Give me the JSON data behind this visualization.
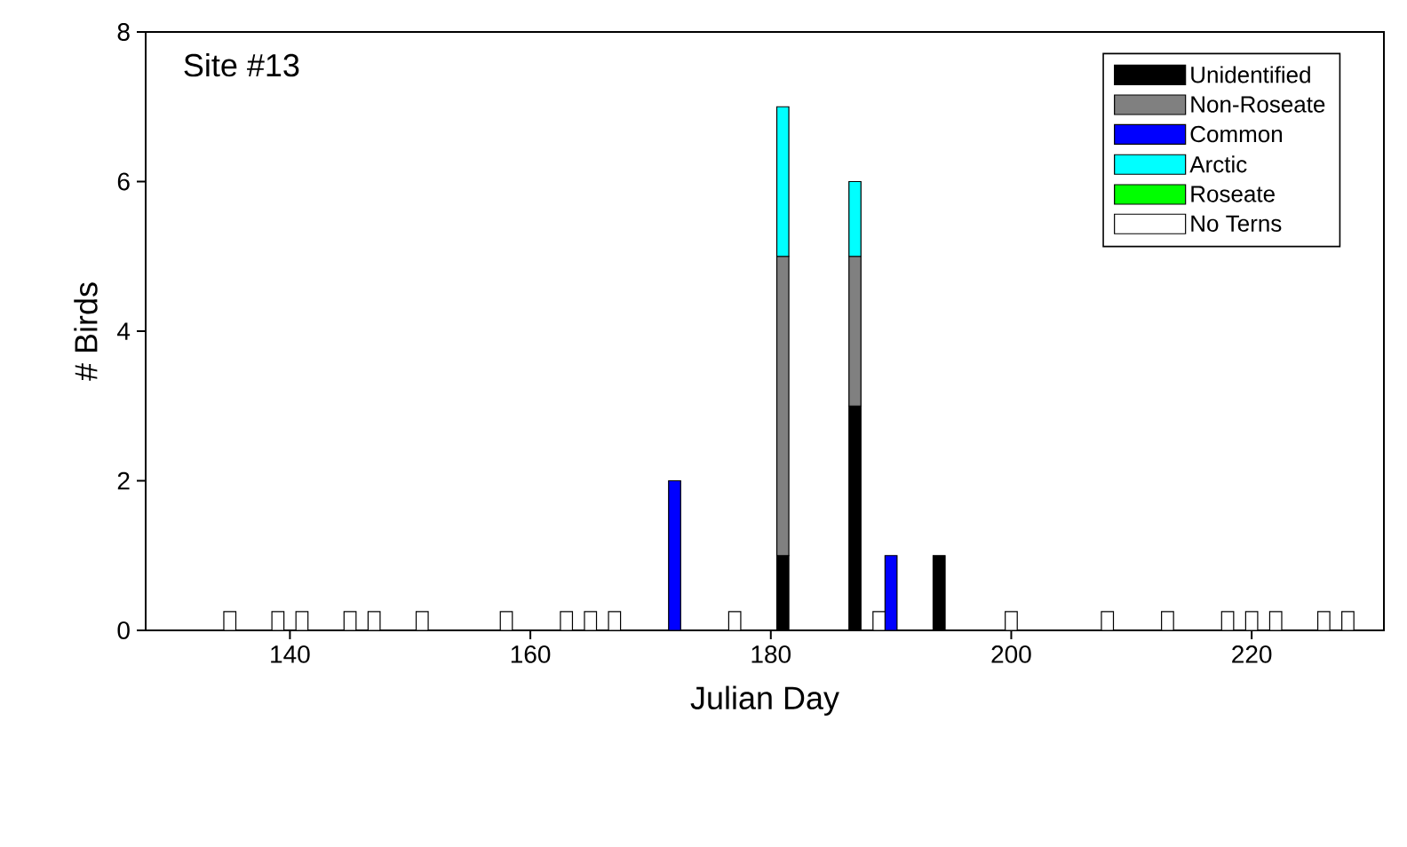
{
  "chart_data": {
    "type": "bar",
    "stacked": true,
    "xlabel": "Julian Day",
    "ylabel": "# Birds",
    "annotations": [
      "Site #13"
    ],
    "x": [
      135,
      139,
      141,
      145,
      147,
      151,
      158,
      163,
      165,
      167,
      172,
      177,
      181,
      187,
      189,
      190,
      194,
      200,
      208,
      213,
      218,
      220,
      222,
      226,
      228
    ],
    "series": [
      {
        "name": "Unidentified",
        "color": "#000000",
        "values": [
          null,
          null,
          null,
          null,
          null,
          null,
          null,
          null,
          null,
          null,
          null,
          null,
          1,
          3,
          null,
          null,
          1,
          null,
          null,
          null,
          null,
          null,
          null,
          null,
          null
        ]
      },
      {
        "name": "Non-Roseate",
        "color": "#808080",
        "values": [
          null,
          null,
          null,
          null,
          null,
          null,
          null,
          null,
          null,
          null,
          null,
          null,
          4,
          2,
          null,
          null,
          null,
          null,
          null,
          null,
          null,
          null,
          null,
          null,
          null
        ]
      },
      {
        "name": "Common",
        "color": "#0000ff",
        "values": [
          null,
          null,
          null,
          null,
          null,
          null,
          null,
          null,
          null,
          null,
          2,
          null,
          null,
          null,
          null,
          1,
          null,
          null,
          null,
          null,
          null,
          null,
          null,
          null,
          null
        ]
      },
      {
        "name": "Arctic",
        "color": "#00ffff",
        "values": [
          null,
          null,
          null,
          null,
          null,
          null,
          null,
          null,
          null,
          null,
          null,
          null,
          2,
          1,
          null,
          null,
          null,
          null,
          null,
          null,
          null,
          null,
          null,
          null,
          null
        ]
      },
      {
        "name": "Roseate",
        "color": "#00ff00",
        "values": [
          null,
          null,
          null,
          null,
          null,
          null,
          null,
          null,
          null,
          null,
          null,
          null,
          null,
          null,
          null,
          null,
          null,
          null,
          null,
          null,
          null,
          null,
          null,
          null,
          null
        ]
      },
      {
        "name": "No Terns",
        "color": "#ffffff",
        "values": [
          0.25,
          0.25,
          0.25,
          0.25,
          0.25,
          0.25,
          0.25,
          0.25,
          0.25,
          0.25,
          null,
          0.25,
          null,
          null,
          0.25,
          null,
          null,
          0.25,
          0.25,
          0.25,
          0.25,
          0.25,
          0.25,
          0.25,
          0.25
        ]
      }
    ],
    "xlim": [
      128,
      231
    ],
    "xticks": [
      140,
      160,
      180,
      200,
      220
    ],
    "ylim": [
      0,
      8
    ],
    "yticks": [
      0,
      2,
      4,
      6,
      8
    ],
    "grid": false,
    "legend": "top right"
  }
}
